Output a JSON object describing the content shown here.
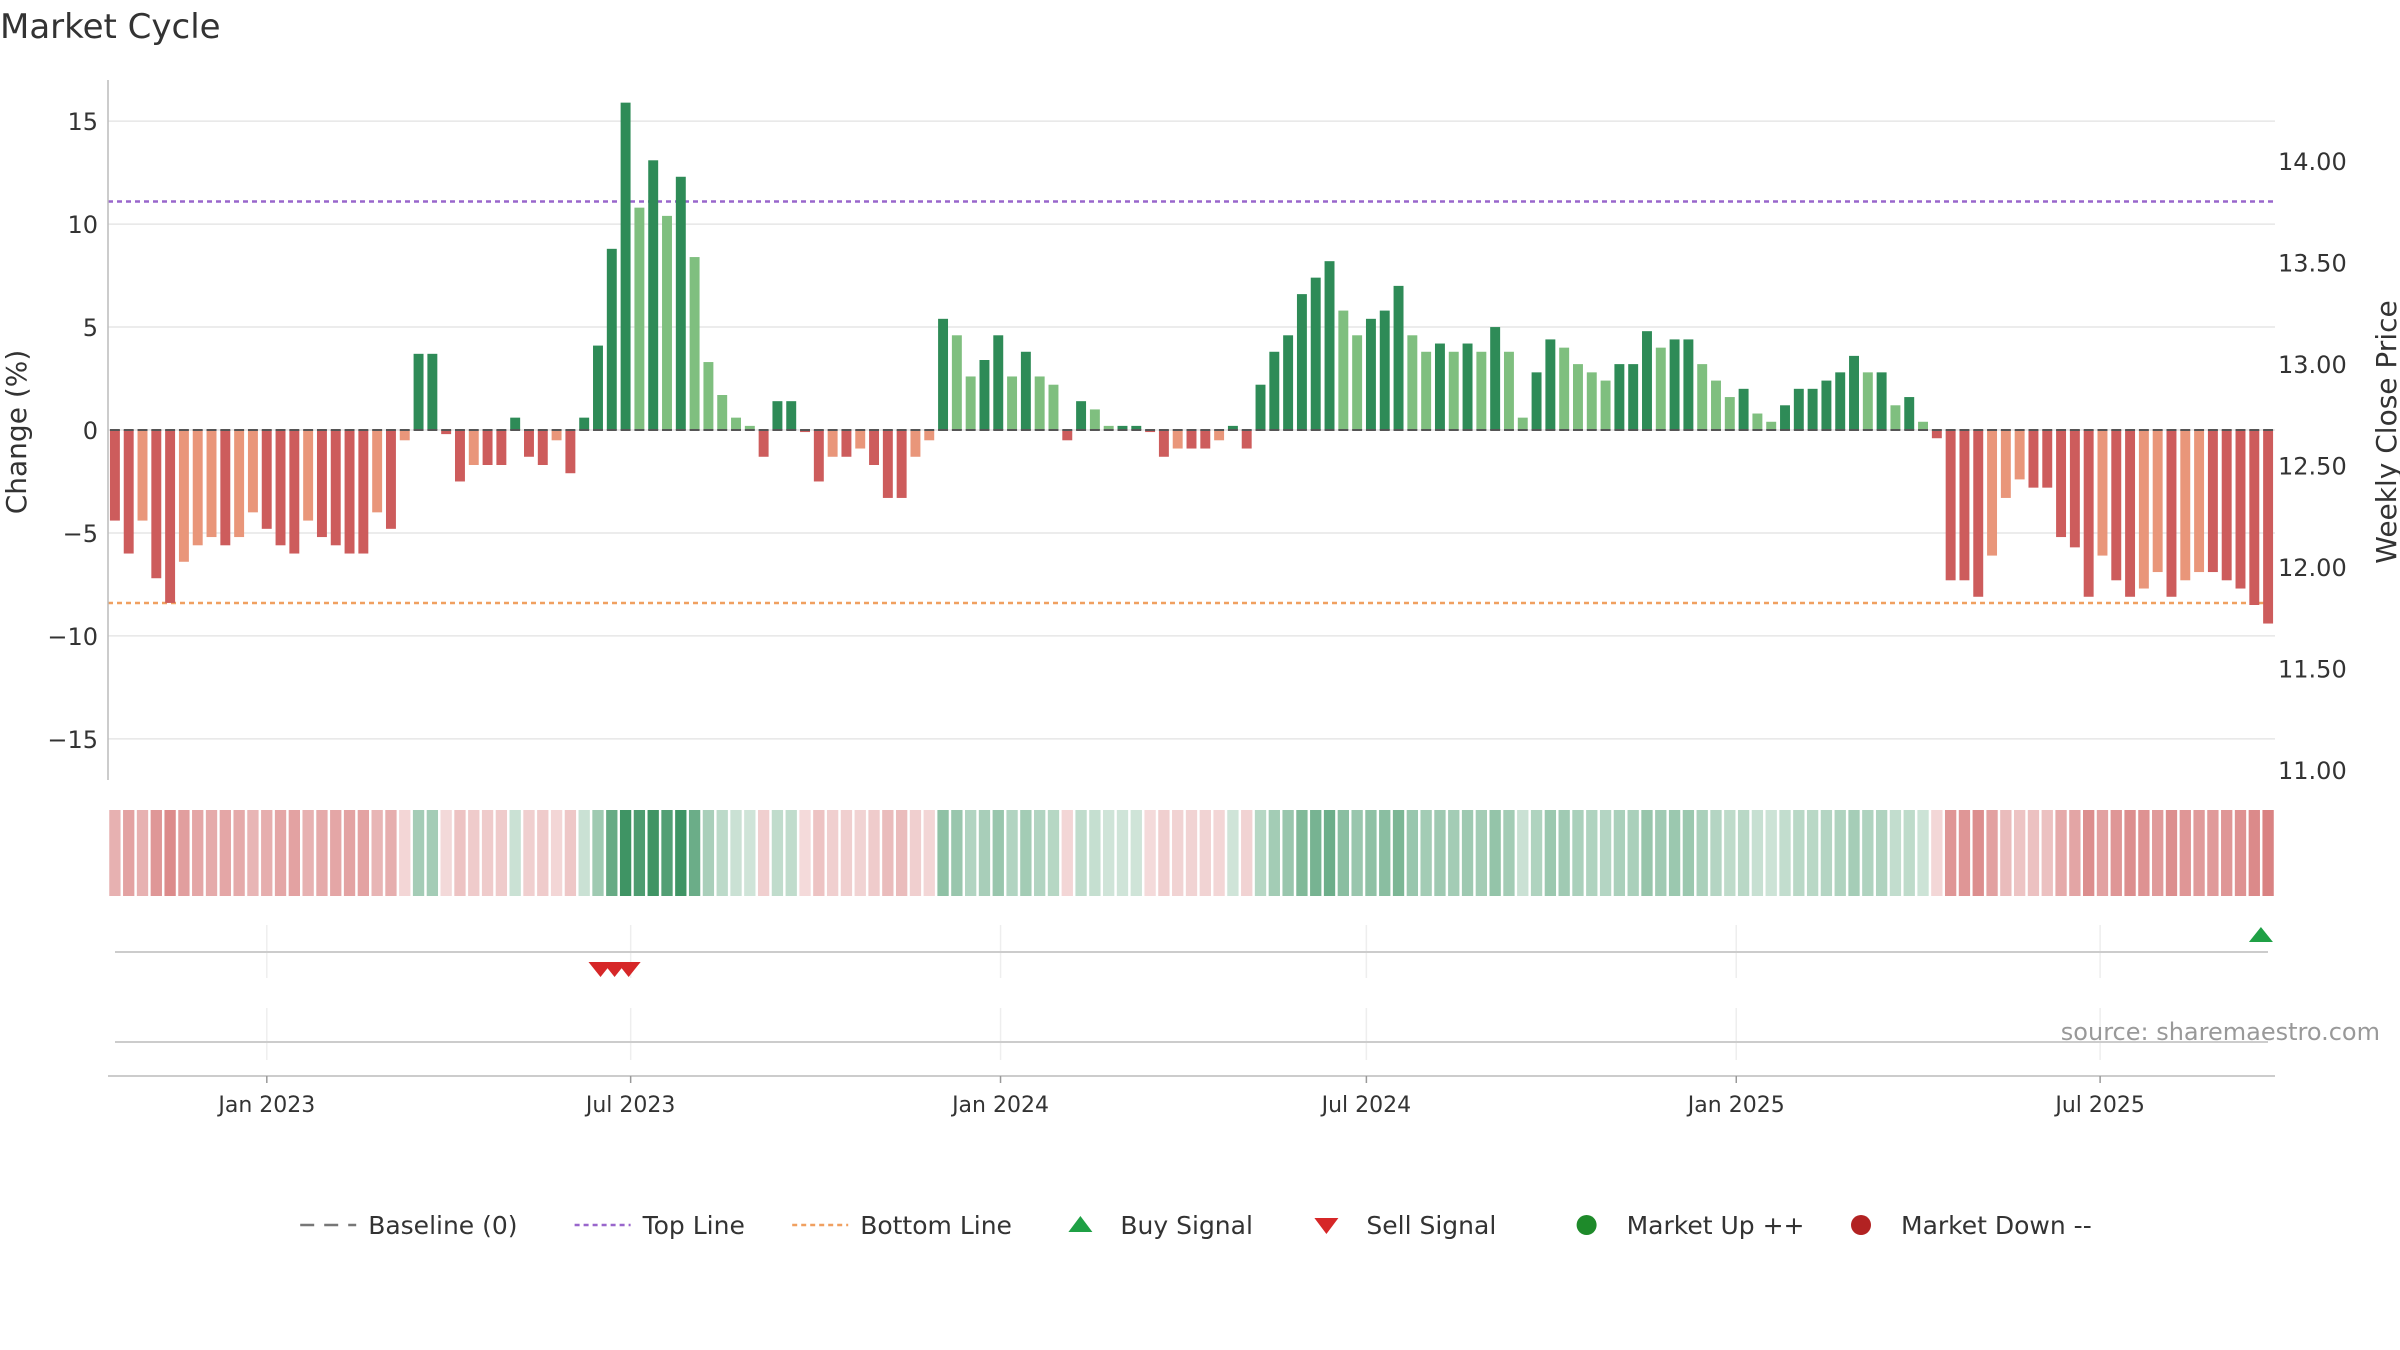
{
  "chart_data": {
    "type": "bar",
    "title": "Market Cycle",
    "ylabel": "Change (%)",
    "ylabel_right": "Weekly Close Price",
    "ylim": [
      -17,
      17
    ],
    "ylim_right": [
      10.95,
      14.4
    ],
    "yticks": [
      15,
      10,
      5,
      0,
      -5,
      -10,
      -15
    ],
    "yticks_labels": [
      "15",
      "10",
      "5",
      "0",
      "−5",
      "−10",
      "−15"
    ],
    "yticks_right": [
      14.0,
      13.5,
      13.0,
      12.5,
      12.0,
      11.5,
      11.0
    ],
    "yticks_right_labels": [
      "14.00",
      "13.50",
      "13.00",
      "12.50",
      "12.00",
      "11.50",
      "11.00"
    ],
    "x_start": "2022-10-14",
    "x_end": "2025-09-26",
    "xticks": [
      "2023-01-01",
      "2023-07-01",
      "2024-01-01",
      "2024-07-01",
      "2025-01-01",
      "2025-07-01"
    ],
    "xtick_labels": [
      "Jan 2023",
      "Jul 2023",
      "Jan 2024",
      "Jul 2024",
      "Jan 2025",
      "Jul 2025"
    ],
    "top_line": 11.1,
    "bottom_line": -8.4,
    "values": [
      -4.4,
      -6,
      -4.4,
      -7.2,
      -8.4,
      -6.4,
      -5.6,
      -5.2,
      -5.6,
      -5.2,
      -4.0,
      -4.8,
      -5.6,
      -6,
      -4.4,
      -5.2,
      -5.6,
      -6,
      -6,
      -4.0,
      -4.8,
      -0.5,
      3.7,
      3.7,
      -0.2,
      -2.5,
      -1.7,
      -1.7,
      -1.7,
      0.6,
      -1.3,
      -1.7,
      -0.5,
      -2.1,
      0.6,
      4.1,
      8.8,
      15.9,
      10.8,
      13.1,
      10.4,
      12.3,
      8.4,
      3.3,
      1.7,
      0.6,
      0.2,
      -1.3,
      1.4,
      1.4,
      -0.1,
      -2.5,
      -1.3,
      -1.3,
      -0.9,
      -1.7,
      -3.3,
      -3.3,
      -1.3,
      -0.5,
      5.4,
      4.6,
      2.6,
      3.4,
      4.6,
      2.6,
      3.8,
      2.6,
      2.2,
      -0.5,
      1.4,
      1,
      0.2,
      0.2,
      0.2,
      -0.1,
      -1.3,
      -0.9,
      -0.9,
      -0.9,
      -0.5,
      0.2,
      -0.9,
      2.2,
      3.8,
      4.6,
      6.6,
      7.4,
      8.2,
      5.8,
      4.6,
      5.4,
      5.8,
      7,
      4.6,
      3.8,
      4.2,
      3.8,
      4.2,
      3.8,
      5,
      3.8,
      0.6,
      2.8,
      4.4,
      4,
      3.2,
      2.8,
      2.4,
      3.2,
      3.2,
      4.8,
      4,
      4.4,
      4.4,
      3.2,
      2.4,
      1.6,
      2,
      0.8,
      0.4,
      1.2,
      2,
      2,
      2.4,
      2.8,
      3.6,
      2.8,
      2.8,
      1.2,
      1.6,
      0.4,
      -0.4,
      -7.3,
      -7.3,
      -8.1,
      -6.1,
      -3.3,
      -2.4,
      -2.8,
      -2.8,
      -5.2,
      -5.7,
      -8.1,
      -6.1,
      -7.3,
      -8.1,
      -7.7,
      -6.9,
      -8.1,
      -7.3,
      -6.9,
      -6.9,
      -7.3,
      -7.7,
      -8.5,
      -9.4
    ],
    "buy_signals": [
      "2025-09-19"
    ],
    "sell_signals": [
      "2023-06-16",
      "2023-06-23",
      "2023-06-30"
    ],
    "legend": [
      {
        "label": "Baseline (0)",
        "marker": "dash",
        "color": "#777777"
      },
      {
        "label": "Top Line",
        "marker": "dotted",
        "color": "#9966cc"
      },
      {
        "label": "Bottom Line",
        "marker": "dotted",
        "color": "#f0a060"
      },
      {
        "label": "Buy Signal",
        "marker": "triangle-up",
        "color": "#1fa045"
      },
      {
        "label": "Sell Signal",
        "marker": "triangle-down",
        "color": "#d62728"
      },
      {
        "label": "Market Up ++",
        "marker": "circle",
        "color": "#1e8a2a"
      },
      {
        "label": "Market Down --",
        "marker": "circle",
        "color": "#b22222"
      }
    ],
    "legend_placement": "bottom",
    "grid": true
  },
  "colors": {
    "strong_up": "#2e8b57",
    "weak_up": "#7fbf7f",
    "strong_down": "#cd5c5c",
    "weak_down": "#e9967a",
    "top_line": "#9966cc",
    "bottom_line": "#f0a060",
    "buy": "#1fa045",
    "sell": "#d62728"
  },
  "source": "source: sharemaestro.com"
}
